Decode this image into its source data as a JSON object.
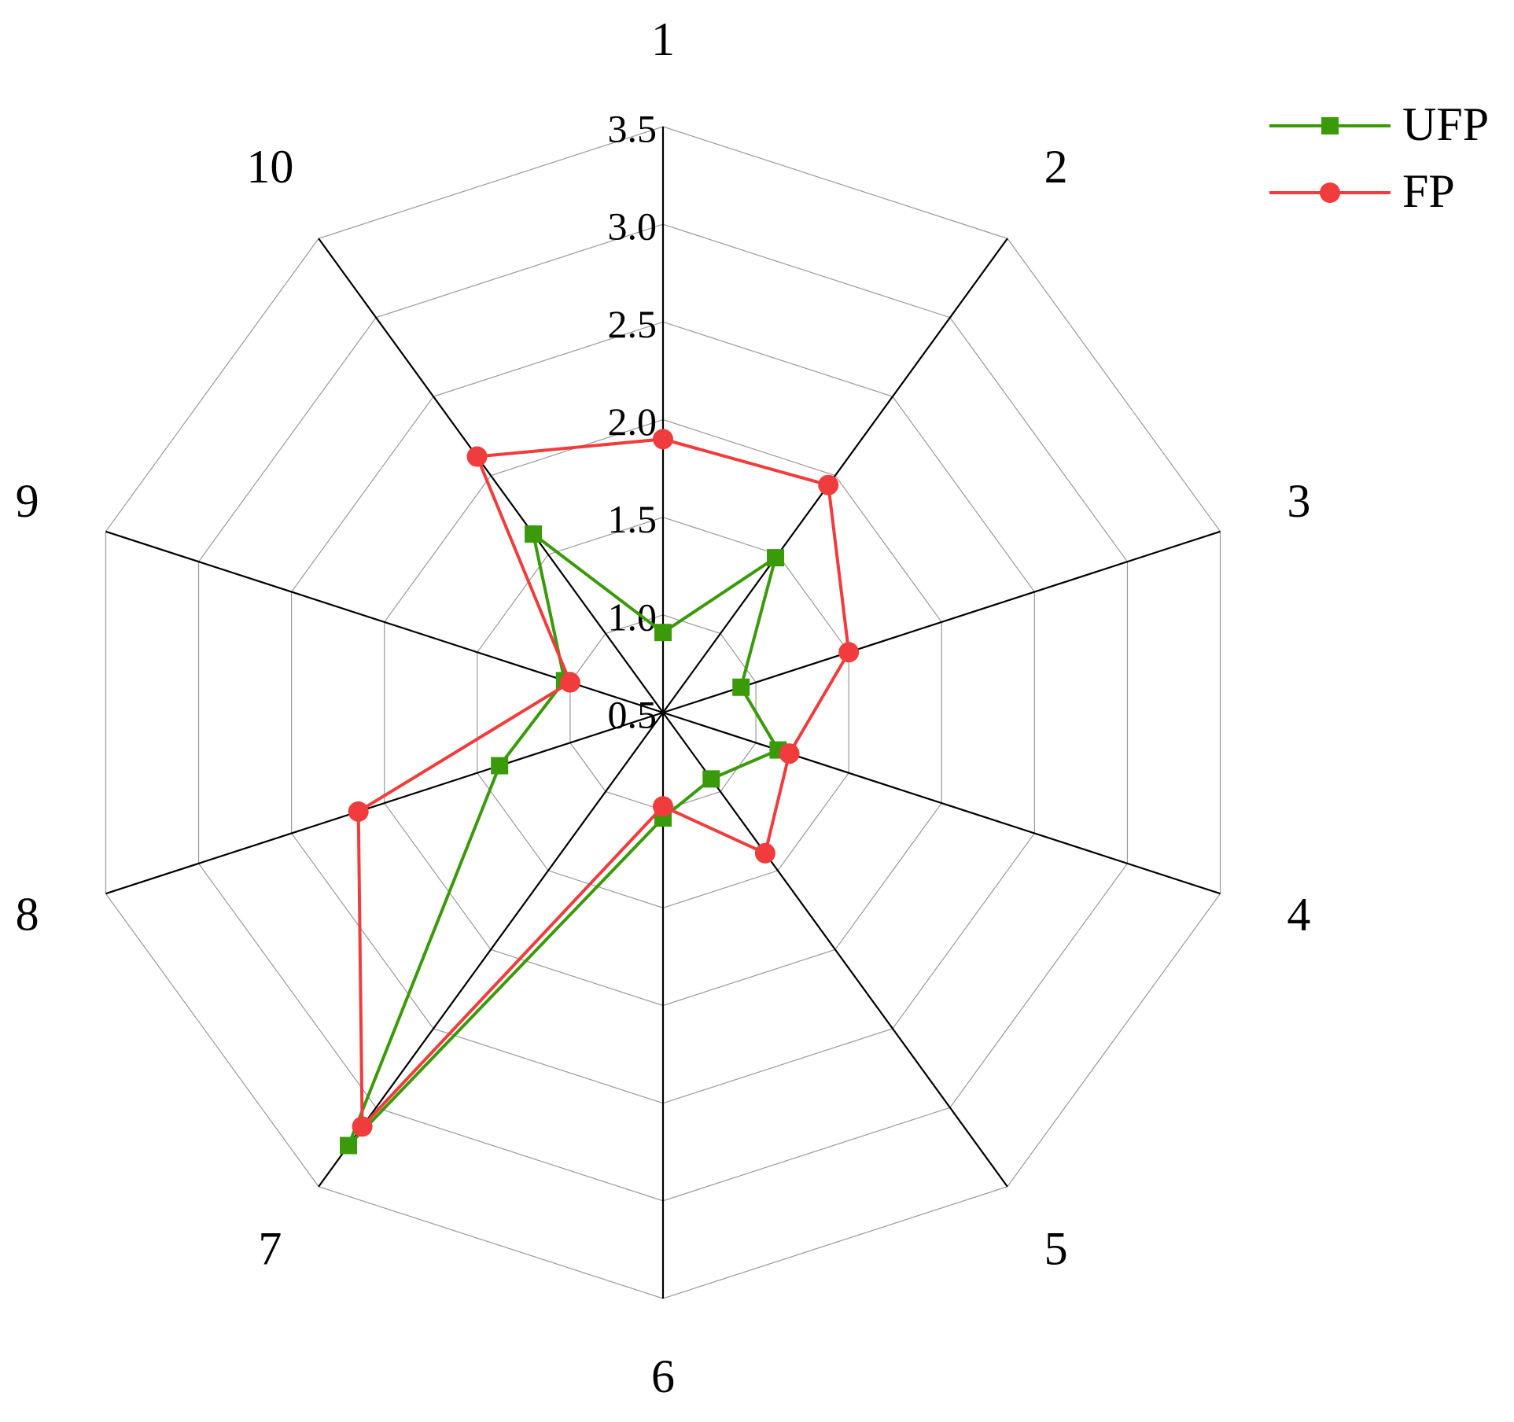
{
  "chart_data": {
    "type": "radar",
    "categories": [
      "1",
      "2",
      "3",
      "4",
      "5",
      "6",
      "7",
      "8",
      "9",
      "10"
    ],
    "series": [
      {
        "name": "UFP",
        "color": "#3a9a0a",
        "marker": "square",
        "values": [
          0.91,
          1.48,
          0.92,
          1.12,
          0.92,
          1.04,
          3.24,
          1.38,
          1.03,
          1.63
        ]
      },
      {
        "name": "FP",
        "color": "#f03c3c",
        "marker": "circle",
        "values": [
          1.9,
          1.94,
          1.5,
          1.18,
          1.39,
          0.98,
          3.12,
          2.14,
          1.0,
          2.12
        ]
      }
    ],
    "rlim": [
      0.5,
      3.5
    ],
    "rticks": [
      {
        "value": 0.5,
        "label": "0.5"
      },
      {
        "value": 1.0,
        "label": "1.0"
      },
      1.5,
      {
        "value": 2.0,
        "label": "2.0"
      },
      2.5,
      {
        "value": 3.0,
        "label": "3.0"
      },
      3.5
    ],
    "grid": true,
    "legend": "top-right"
  }
}
